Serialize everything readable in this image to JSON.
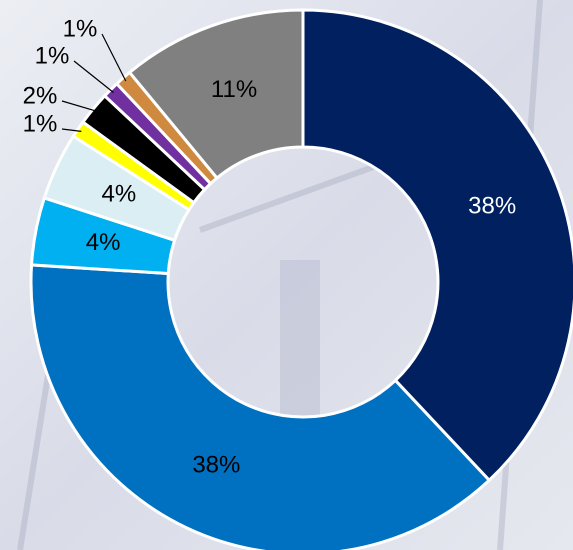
{
  "chart_data": {
    "type": "donut",
    "values": [
      38,
      38,
      4,
      4,
      1,
      2,
      1,
      1,
      11
    ],
    "value_labels": [
      "38%",
      "38%",
      "4%",
      "4%",
      "1%",
      "2%",
      "1%",
      "1%",
      "11%"
    ],
    "colors": [
      "#002060",
      "#0070c0",
      "#00b0f0",
      "#dbeef4",
      "#ffff00",
      "#000000",
      "#7030a0",
      "#d08a40",
      "#808080"
    ]
  }
}
